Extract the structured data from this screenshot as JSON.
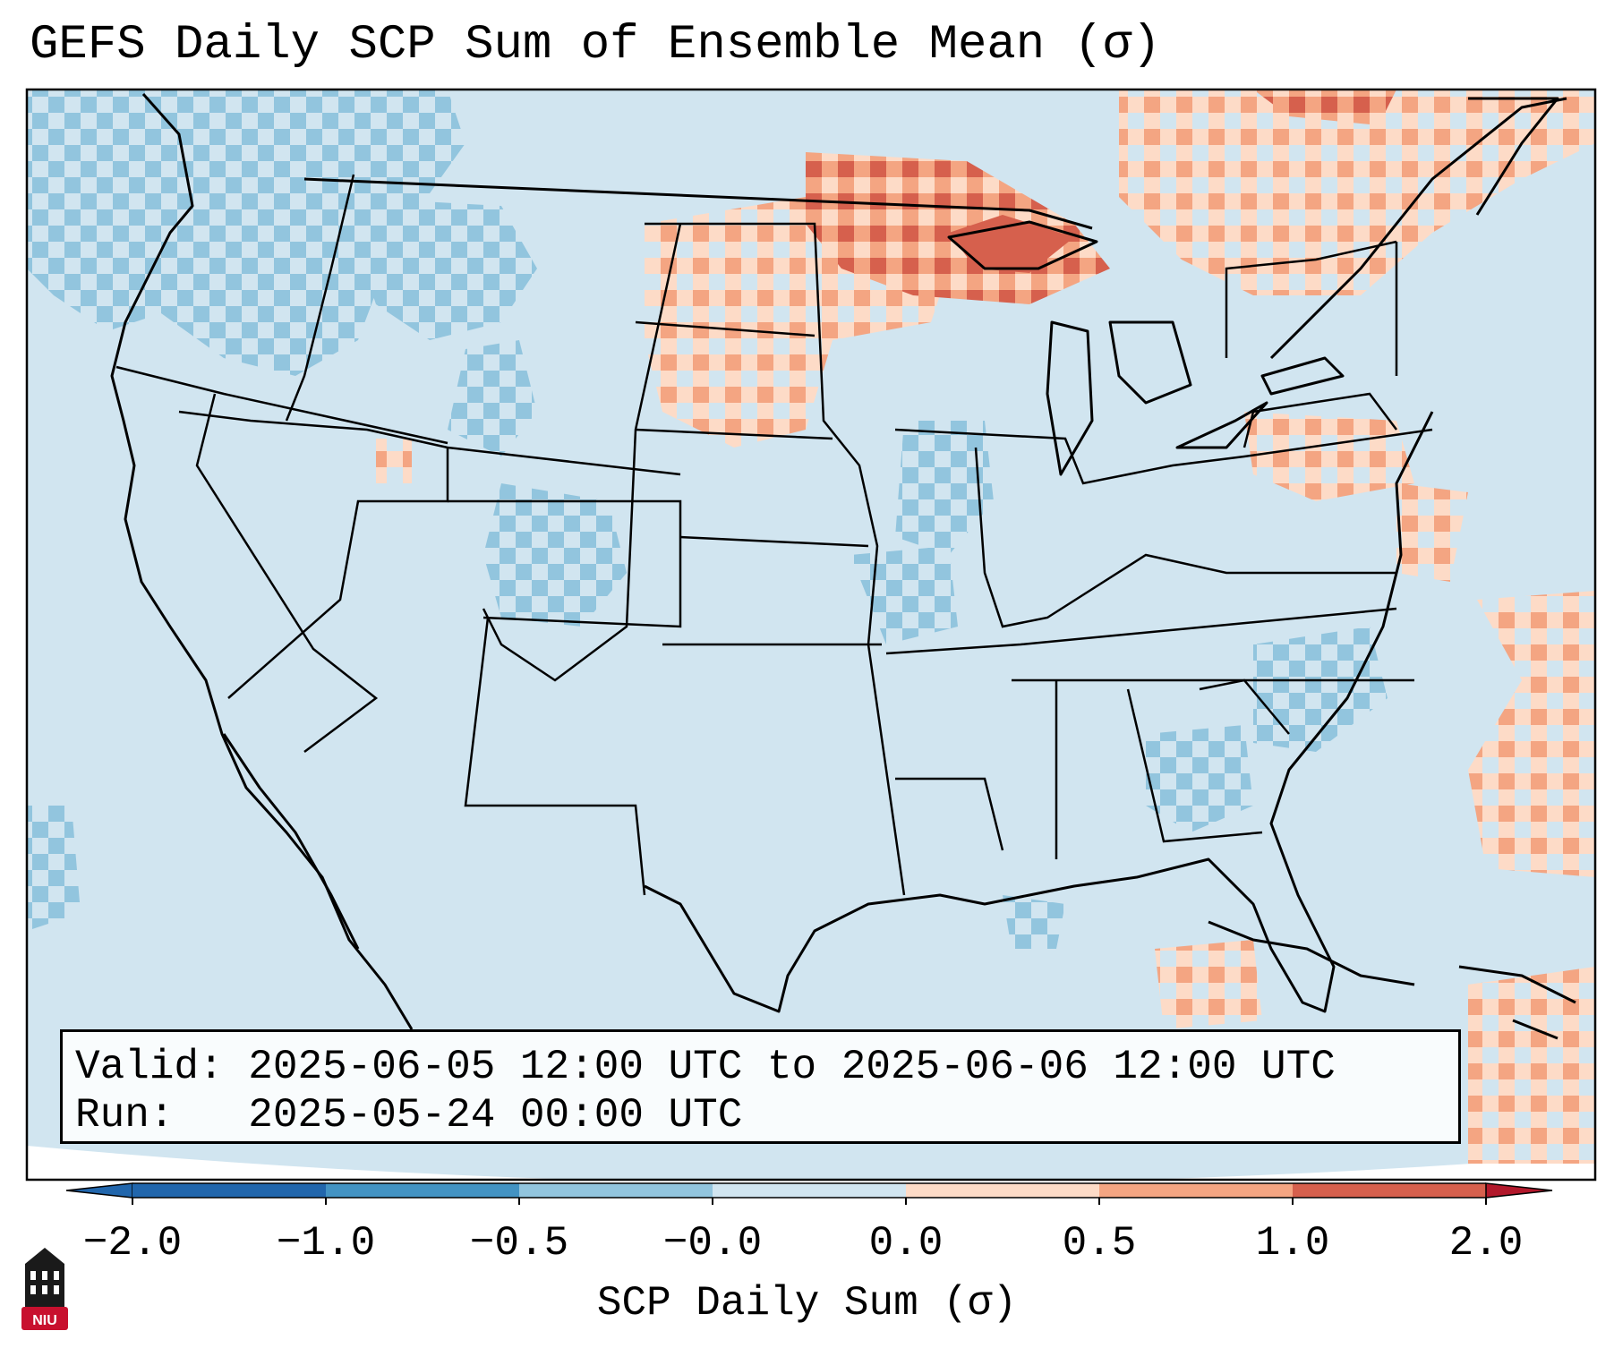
{
  "title": "GEFS Daily SCP Sum of Ensemble Mean (σ)",
  "info": {
    "valid_label": "Valid:",
    "valid_value": "2025-06-05 12:00 UTC to 2025-06-06 12:00 UTC",
    "run_label": "Run:",
    "run_value": "2025-05-24 00:00 UTC"
  },
  "colorbar": {
    "label": "SCP Daily Sum (σ)",
    "ticks": [
      "−2.0",
      "−1.0",
      "−0.5",
      "−0.0",
      "0.0",
      "0.5",
      "1.0",
      "2.0"
    ],
    "colors": [
      "#2166ac",
      "#4393c3",
      "#92c5de",
      "#d1e5f0",
      "#fddbc7",
      "#f4a582",
      "#d6604d",
      "#b2182b"
    ],
    "under_color": "#2166ac",
    "over_color": "#b2182b"
  },
  "map": {
    "projection": "Lambert conformal, contiguous United States",
    "background_category": "−0.0",
    "anomalies": [
      {
        "region": "Upper Midwest / Lake Superior",
        "level": "2.0"
      },
      {
        "region": "North Dakota / Minnesota",
        "level": "1.0"
      },
      {
        "region": "Southern Ontario",
        "level": "0.5"
      },
      {
        "region": "Pacific Northwest",
        "level": "−0.5"
      },
      {
        "region": "Colorado / Utah",
        "level": "−0.5"
      },
      {
        "region": "Carolinas / Georgia",
        "level": "−0.5"
      }
    ]
  },
  "logo": {
    "text": "NIU",
    "icon": "niu-building-icon"
  }
}
